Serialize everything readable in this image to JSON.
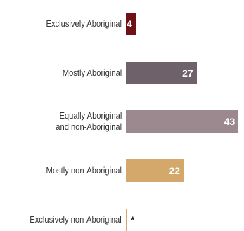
{
  "chart_data": {
    "type": "bar",
    "orientation": "horizontal",
    "categories": [
      [
        "Exclusively Aboriginal"
      ],
      [
        "Mostly Aboriginal"
      ],
      [
        "Equally Aboriginal",
        "and non-Aboriginal"
      ],
      [
        "Mostly non-Aboriginal"
      ],
      [
        "Exclusively non-Aboriginal"
      ]
    ],
    "values": [
      4,
      27,
      43,
      22,
      null
    ],
    "value_labels": [
      "4",
      "27",
      "43",
      "22",
      "*"
    ],
    "colors": [
      "#6e1218",
      "#6f6169",
      "#9c8990",
      "#d3a86a",
      "#d3a86a"
    ],
    "xlim": [
      0,
      44
    ],
    "grid": false,
    "title": "",
    "xlabel": "",
    "ylabel": ""
  }
}
